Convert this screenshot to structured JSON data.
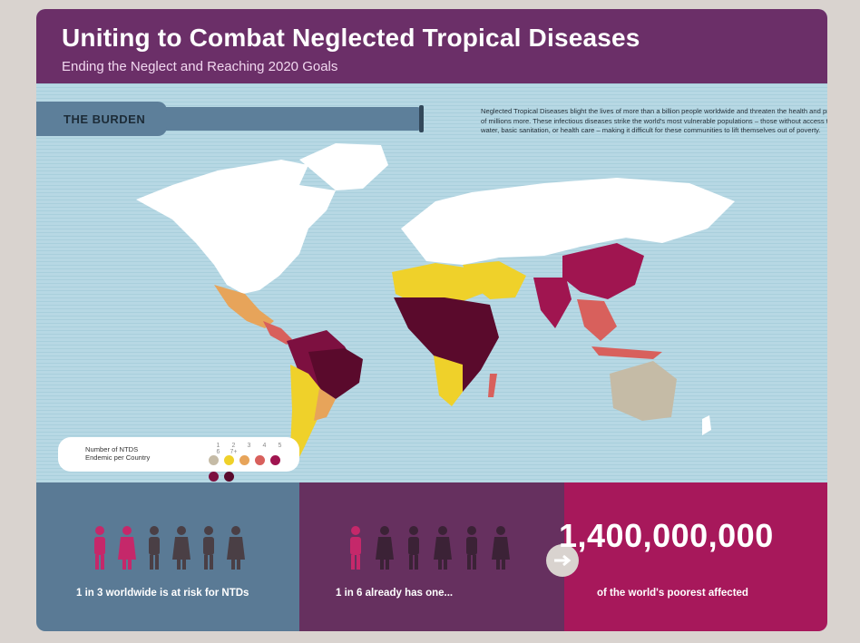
{
  "header": {
    "title": "Uniting to Combat Neglected Tropical Diseases",
    "subtitle": "Ending the Neglect and Reaching 2020 Goals"
  },
  "burden": {
    "label": "THE BURDEN",
    "intro": "Neglected Tropical Diseases blight the lives of more than a billion people worldwide and threaten the health and productivity of millions more. These infectious diseases strike the world's most vulnerable populations – those without access to clean water, basic sanitation, or health care – making it difficult for these communities to lift themselves out of poverty."
  },
  "legend": {
    "line1": "Number of NTDS",
    "line2": "Endemic per Country",
    "numbers": [
      "1",
      "2",
      "3",
      "4",
      "5",
      "6",
      "7+"
    ],
    "colors": [
      "#c5bba6",
      "#efd12a",
      "#e7a45a",
      "#d8605c",
      "#a01550",
      "#7d1040",
      "#5a0a2c"
    ]
  },
  "stats": {
    "risk_text": "1 in 3 worldwide is at risk for NTDs",
    "has_text": "1 in 6 already has one...",
    "big_number": "1,400,000,000",
    "big_caption": "of the world's poorest affected"
  },
  "colors": {
    "header_bg": "#6b2f68",
    "ocean": "#b7d8e4",
    "panel_blue": "#5a7a95",
    "panel_purple": "#66305f",
    "panel_magenta": "#a7185b",
    "person_highlight": "#c5286a",
    "person_dark": "#4a3f45"
  }
}
